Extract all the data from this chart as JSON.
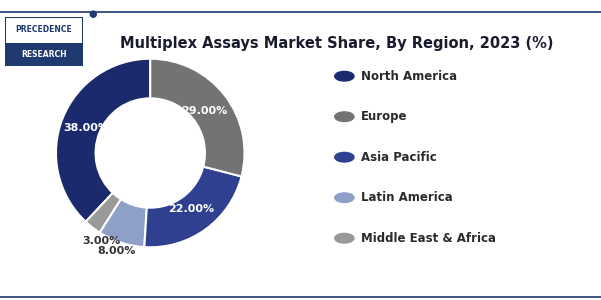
{
  "title": "Multiplex Assays Market Share, By Region, 2023 (%)",
  "slices": [
    38.0,
    3.0,
    8.0,
    22.0,
    29.0
  ],
  "labels": [
    "38.00%",
    "3.00%",
    "8.00%",
    "22.00%",
    "29.00%"
  ],
  "legend_labels": [
    "North America",
    "Europe",
    "Asia Pacific",
    "Latin America",
    "Middle East & Africa"
  ],
  "colors": [
    "#1a2a6c",
    "#999999",
    "#8fa0c8",
    "#2e408f",
    "#737373"
  ],
  "pie_colors": [
    "#1a2a6c",
    "#999999",
    "#8fa0c8",
    "#2e408f",
    "#737373"
  ],
  "legend_colors": [
    "#1a2a6c",
    "#737373",
    "#2e408f",
    "#8fa0c8",
    "#999999"
  ],
  "startangle": 90,
  "background_color": "#ffffff",
  "title_fontsize": 10.5,
  "label_fontsize": 8,
  "legend_fontsize": 8.5,
  "border_color": "#1e3a6e",
  "logo_text1": "PRECEDENCE",
  "logo_text2": "RESEARCH"
}
